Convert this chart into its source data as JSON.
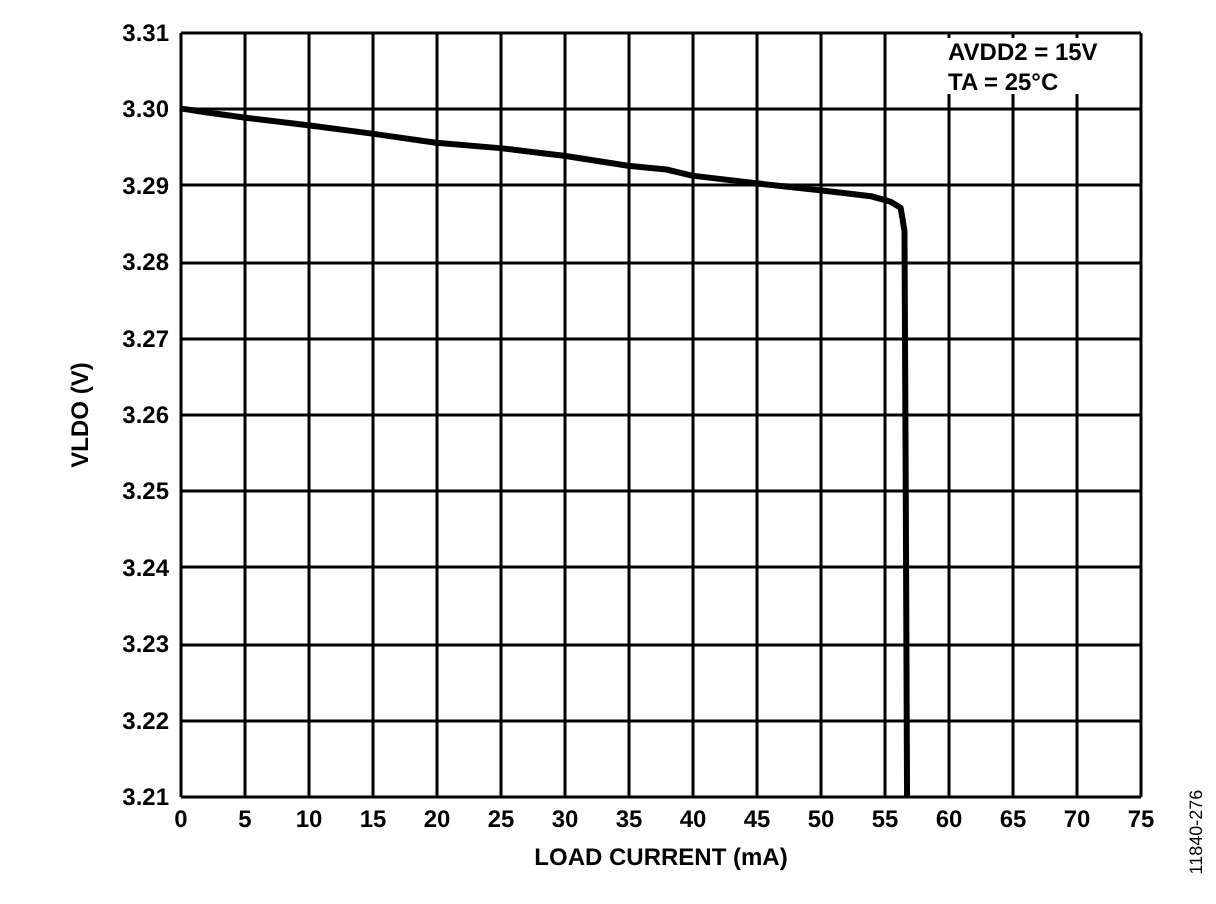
{
  "chart_data": {
    "type": "line",
    "xlabel": "LOAD CURRENT (mA)",
    "ylabel": "VLDO (V)",
    "x": [
      0,
      2,
      5,
      10,
      15,
      20,
      25,
      28,
      30,
      35,
      38,
      40,
      45,
      50,
      54,
      55.5,
      56.3,
      56.6,
      56.7,
      56.8
    ],
    "series": [
      {
        "color": "#000000",
        "values": [
          3.3,
          3.2995,
          3.2988,
          3.2978,
          3.2967,
          3.2955,
          3.2948,
          3.2942,
          3.2938,
          3.2925,
          3.292,
          3.2912,
          3.2902,
          3.2893,
          3.2885,
          3.2878,
          3.287,
          3.284,
          3.25,
          3.21
        ]
      }
    ],
    "xlim": [
      0,
      75
    ],
    "xticks": [
      0,
      5,
      10,
      15,
      20,
      25,
      30,
      35,
      40,
      45,
      50,
      55,
      60,
      65,
      70,
      75
    ],
    "ylim": [
      3.21,
      3.31
    ],
    "yticks": [
      {
        "value": 3.21,
        "label": "3.21"
      },
      {
        "value": 3.22,
        "label": "3.22"
      },
      {
        "value": 3.23,
        "label": "3.23"
      },
      {
        "value": 3.24,
        "label": "3.24"
      },
      {
        "value": 3.25,
        "label": "3.25"
      },
      {
        "value": 3.26,
        "label": "3.26"
      },
      {
        "value": 3.27,
        "label": "3.27"
      },
      {
        "value": 3.28,
        "label": "3.28"
      },
      {
        "value": 3.29,
        "label": "3.29"
      },
      {
        "value": 3.3,
        "label": "3.30"
      },
      {
        "value": 3.31,
        "label": "3.31"
      }
    ],
    "grid": true,
    "marker": "none",
    "line_style": "solid",
    "annotations": [
      "AVDD2 = 15V",
      "TA = 25°C",
      "11840-276"
    ]
  }
}
